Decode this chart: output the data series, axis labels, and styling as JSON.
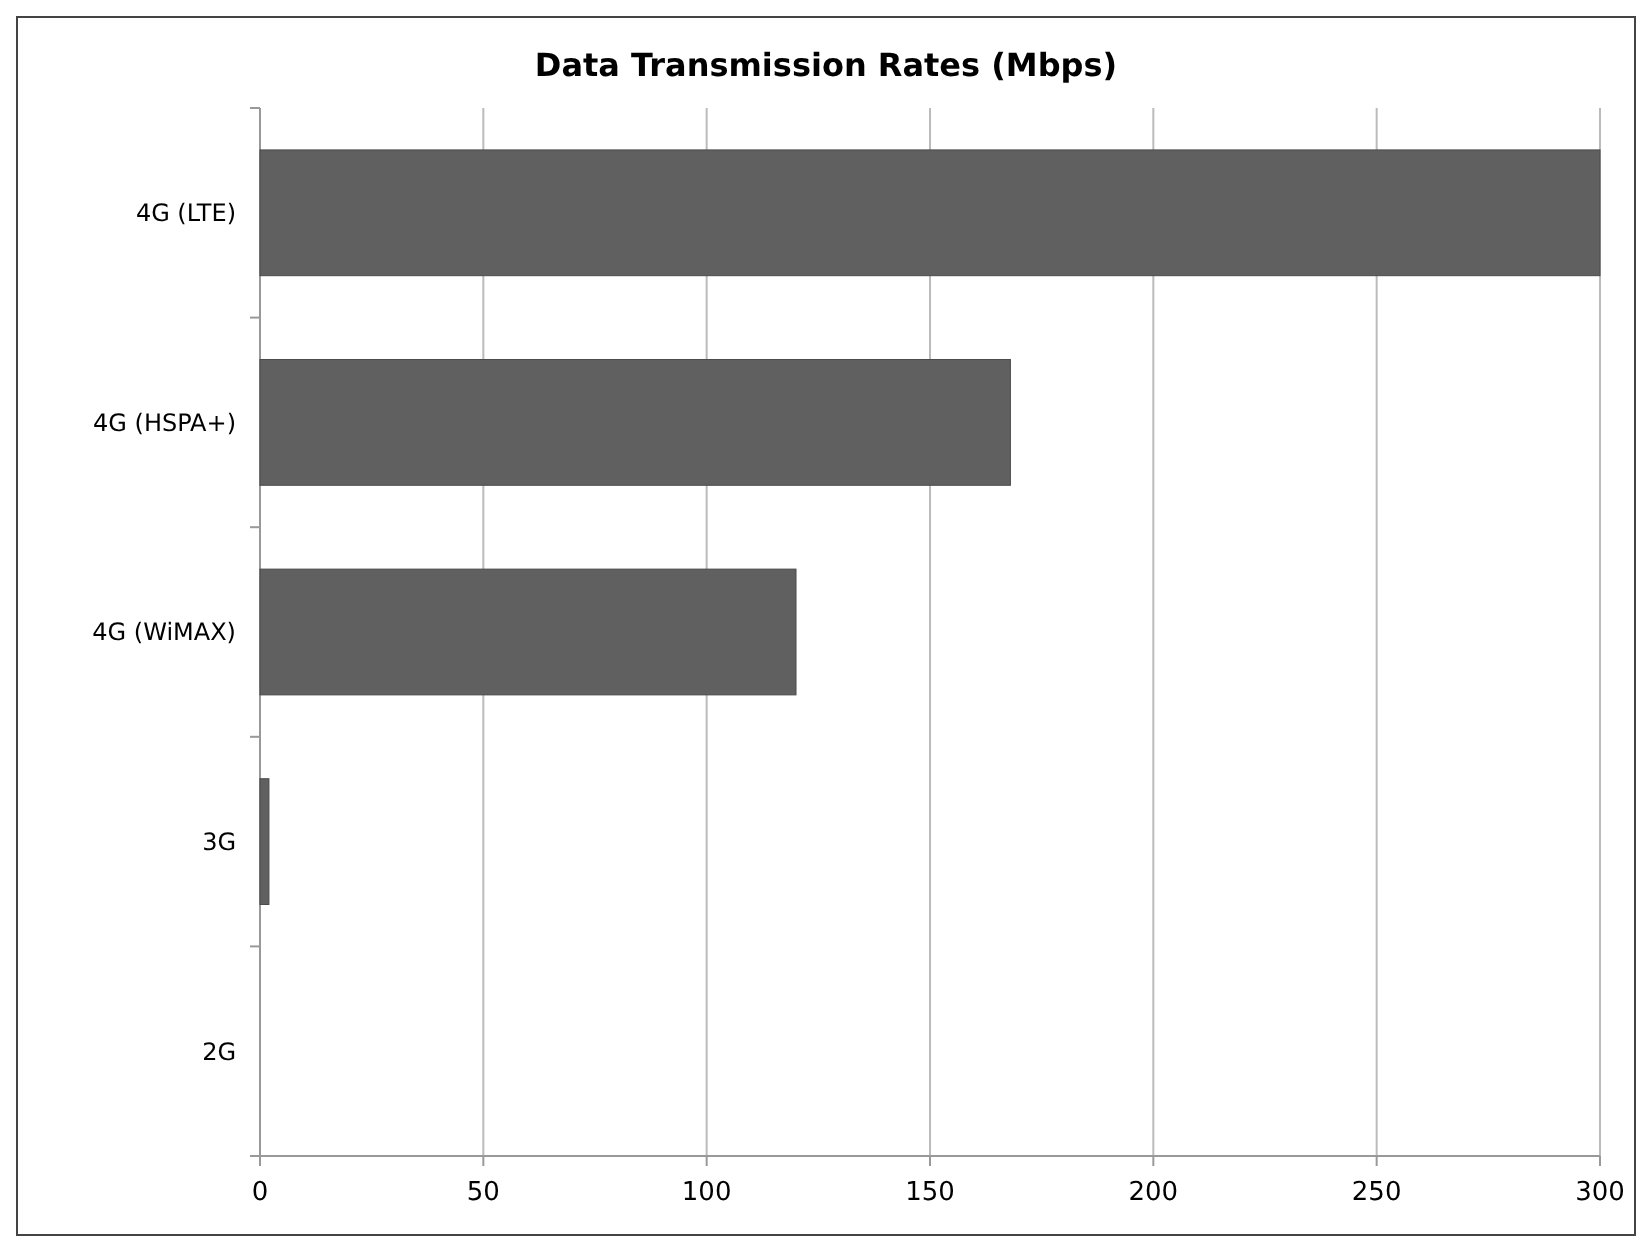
{
  "chart_data": {
    "type": "bar",
    "orientation": "horizontal",
    "title": "Data Transmission Rates (Mbps)",
    "categories": [
      "4G (LTE)",
      "4G (HSPA+)",
      "4G (WiMAX)",
      "3G",
      "2G"
    ],
    "values": [
      300,
      168,
      120,
      2,
      null
    ],
    "color": "#606060",
    "xlim": [
      0,
      300
    ],
    "xticks": [
      0,
      50,
      100,
      150,
      200,
      250,
      300
    ],
    "grid": "x"
  }
}
